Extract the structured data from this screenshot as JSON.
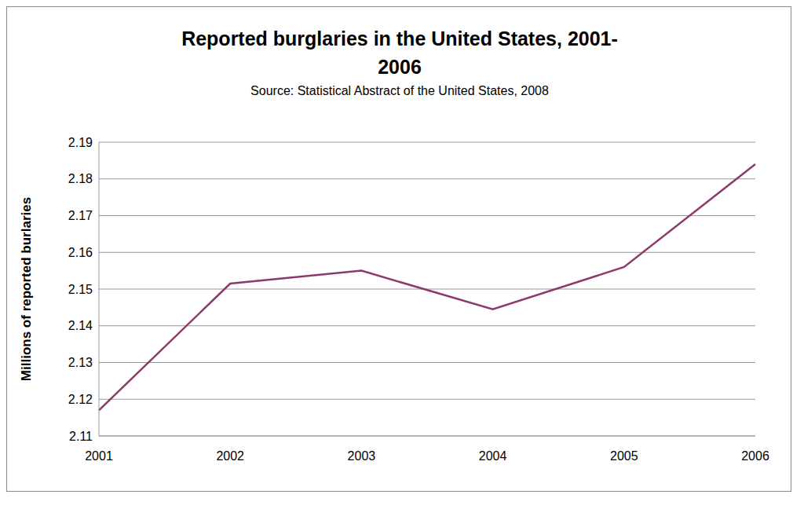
{
  "chart_data": {
    "type": "line",
    "title": "Reported burglaries in the United States, 2001-2006",
    "subtitle": "Source: Statistical Abstract of the United States, 2008",
    "y_label": "Millions of reported burlaries",
    "categories": [
      "2001",
      "2002",
      "2003",
      "2004",
      "2005",
      "2006"
    ],
    "values": [
      2.117,
      2.1515,
      2.155,
      2.1445,
      2.156,
      2.184
    ],
    "color": "#8b3a6b",
    "ylim": [
      2.11,
      2.19
    ],
    "yticks": [
      2.11,
      2.12,
      2.13,
      2.14,
      2.15,
      2.16,
      2.17,
      2.18,
      2.19
    ],
    "grid": true
  }
}
